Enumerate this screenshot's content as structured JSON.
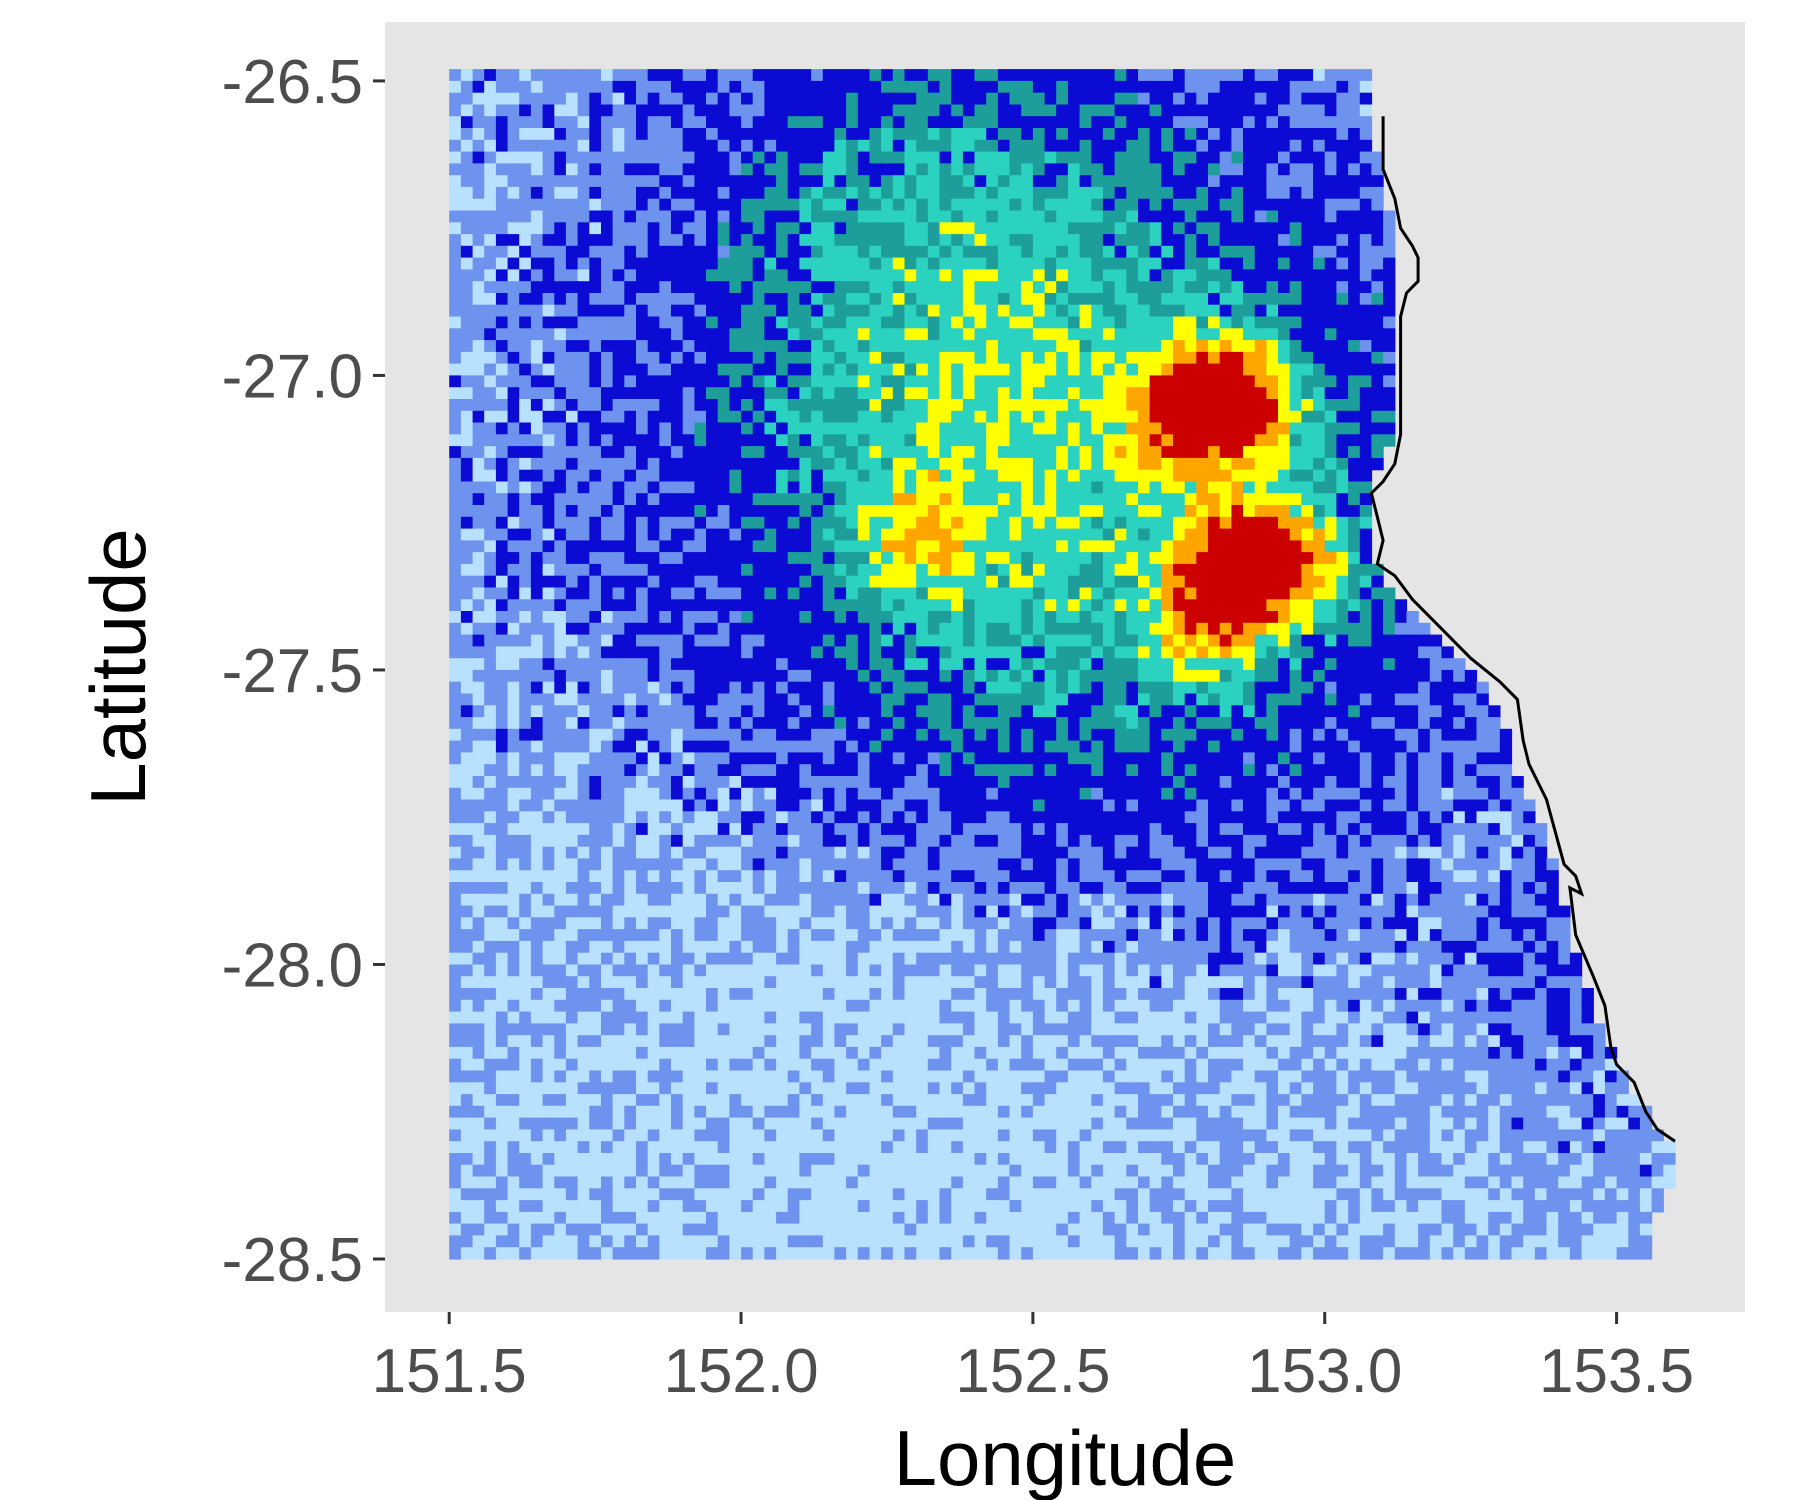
{
  "chart_data": {
    "type": "heatmap",
    "xlabel": "Longitude",
    "ylabel": "Latitude",
    "xlim": [
      151.39,
      153.72
    ],
    "ylim": [
      -28.59,
      -26.4
    ],
    "x_ticks": [
      151.5,
      152.0,
      152.5,
      153.0,
      153.5
    ],
    "y_ticks": [
      -26.5,
      -27.0,
      -27.5,
      -28.0,
      -28.5
    ],
    "x_tick_labels": [
      "151.5",
      "152.0",
      "152.5",
      "153.0",
      "153.5"
    ],
    "y_tick_labels": [
      "-26.5",
      "-27.0",
      "-27.5",
      "-28.0",
      "-28.5"
    ],
    "grid": false,
    "panel_color": "#e5e5e5",
    "grid_extent": {
      "lon": [
        151.5,
        153.6
      ],
      "lat": [
        -28.5,
        -26.5
      ]
    },
    "cell_size_deg": 0.02,
    "color_scale": [
      "#b8e0ff",
      "#6e93ef",
      "#0b0bd3",
      "#1d9e9b",
      "#2bd2c0",
      "#ffff00",
      "#ffa500",
      "#cc0000"
    ],
    "hotspots": [
      {
        "lon": 152.85,
        "lat": -27.05,
        "level": 1.0
      },
      {
        "lon": 152.76,
        "lat": -27.07,
        "level": 1.05
      },
      {
        "lon": 152.84,
        "lat": -27.32,
        "level": 0.95
      },
      {
        "lon": 152.8,
        "lat": -27.42,
        "level": 0.85
      },
      {
        "lon": 152.95,
        "lat": -27.33,
        "level": 0.75
      },
      {
        "lon": 152.29,
        "lat": -27.28,
        "level": 0.55
      }
    ],
    "coastline": [
      [
        153.1,
        -26.56
      ],
      [
        153.1,
        -26.65
      ],
      [
        153.12,
        -26.7
      ],
      [
        153.13,
        -26.75
      ],
      [
        153.15,
        -26.78
      ],
      [
        153.16,
        -26.8
      ],
      [
        153.16,
        -26.84
      ],
      [
        153.14,
        -26.86
      ],
      [
        153.13,
        -26.9
      ],
      [
        153.13,
        -26.95
      ],
      [
        153.13,
        -27.0
      ],
      [
        153.13,
        -27.05
      ],
      [
        153.13,
        -27.1
      ],
      [
        153.12,
        -27.15
      ],
      [
        153.1,
        -27.18
      ],
      [
        153.08,
        -27.2
      ],
      [
        153.09,
        -27.24
      ],
      [
        153.1,
        -27.28
      ],
      [
        153.09,
        -27.32
      ],
      [
        153.12,
        -27.34
      ],
      [
        153.15,
        -27.38
      ],
      [
        153.2,
        -27.43
      ],
      [
        153.25,
        -27.48
      ],
      [
        153.3,
        -27.52
      ],
      [
        153.33,
        -27.55
      ],
      [
        153.34,
        -27.62
      ],
      [
        153.35,
        -27.66
      ],
      [
        153.38,
        -27.72
      ],
      [
        153.41,
        -27.83
      ],
      [
        153.43,
        -27.85
      ],
      [
        153.44,
        -27.88
      ],
      [
        153.42,
        -27.87
      ],
      [
        153.43,
        -27.95
      ],
      [
        153.46,
        -28.02
      ],
      [
        153.48,
        -28.07
      ],
      [
        153.49,
        -28.14
      ],
      [
        153.5,
        -28.17
      ],
      [
        153.53,
        -28.2
      ],
      [
        153.55,
        -28.25
      ],
      [
        153.57,
        -28.28
      ],
      [
        153.6,
        -28.3
      ]
    ],
    "ocean_boundary": [
      [
        153.08,
        -26.5
      ],
      [
        153.08,
        -26.62
      ],
      [
        153.1,
        -26.72
      ],
      [
        153.12,
        -26.82
      ],
      [
        153.11,
        -26.95
      ],
      [
        153.11,
        -27.1
      ],
      [
        153.07,
        -27.2
      ],
      [
        153.08,
        -27.32
      ],
      [
        153.11,
        -27.38
      ],
      [
        153.16,
        -27.43
      ],
      [
        153.26,
        -27.52
      ],
      [
        153.3,
        -27.6
      ],
      [
        153.32,
        -27.68
      ],
      [
        153.37,
        -27.78
      ],
      [
        153.4,
        -27.9
      ],
      [
        153.43,
        -28.02
      ],
      [
        153.47,
        -28.14
      ],
      [
        153.52,
        -28.22
      ],
      [
        153.56,
        -28.28
      ],
      [
        153.6,
        -28.32
      ],
      [
        153.6,
        -28.36
      ],
      [
        153.58,
        -28.4
      ],
      [
        153.56,
        -28.44
      ],
      [
        153.56,
        -28.5
      ]
    ]
  }
}
